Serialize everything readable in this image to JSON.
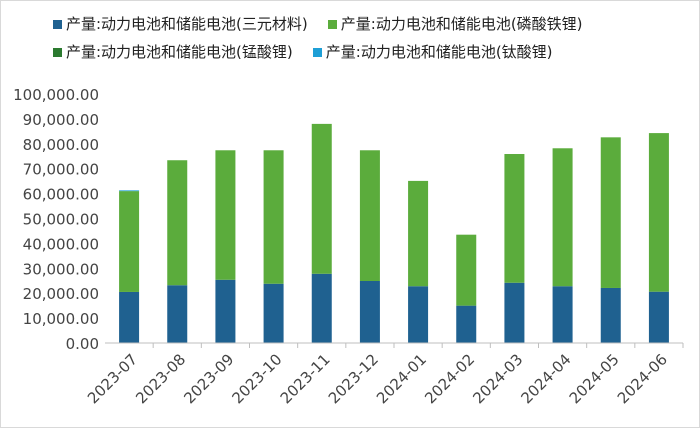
{
  "chart_data": {
    "type": "bar",
    "stacked": true,
    "categories": [
      "2023-07",
      "2023-08",
      "2023-09",
      "2023-10",
      "2023-11",
      "2023-12",
      "2024-01",
      "2024-02",
      "2024-03",
      "2024-04",
      "2024-05",
      "2024-06"
    ],
    "series": [
      {
        "name": "产量:动力电池和储能电池(三元材料)",
        "color": "#1f6190",
        "values": [
          20500,
          23200,
          25400,
          23800,
          27800,
          24900,
          22800,
          15000,
          24200,
          22800,
          22100,
          20600
        ]
      },
      {
        "name": "产量:动力电池和储能电池(磷酸铁锂)",
        "color": "#5bac3c",
        "values": [
          40500,
          50200,
          52000,
          53600,
          60200,
          52500,
          42300,
          28500,
          51700,
          55400,
          60500,
          63700
        ]
      },
      {
        "name": "产量:动力电池和储能电池(锰酸锂)",
        "color": "#2b7a2f",
        "values": [
          0,
          0,
          0,
          0,
          0,
          0,
          0,
          0,
          0,
          0,
          0,
          0
        ]
      },
      {
        "name": "产量:动力电池和储能电池(钛酸锂)",
        "color": "#1e9fd6",
        "values": [
          300,
          0,
          0,
          0,
          0,
          0,
          0,
          0,
          0,
          0,
          0,
          0
        ]
      }
    ],
    "ylim": [
      0,
      100000
    ],
    "yticks": [
      0,
      10000,
      20000,
      30000,
      40000,
      50000,
      60000,
      70000,
      80000,
      90000,
      100000
    ],
    "ytick_labels": [
      "0.00",
      "10,000.00",
      "20,000.00",
      "30,000.00",
      "40,000.00",
      "50,000.00",
      "60,000.00",
      "70,000.00",
      "80,000.00",
      "90,000.00",
      "100,000.00"
    ],
    "legend_position": "top",
    "grid": false
  }
}
